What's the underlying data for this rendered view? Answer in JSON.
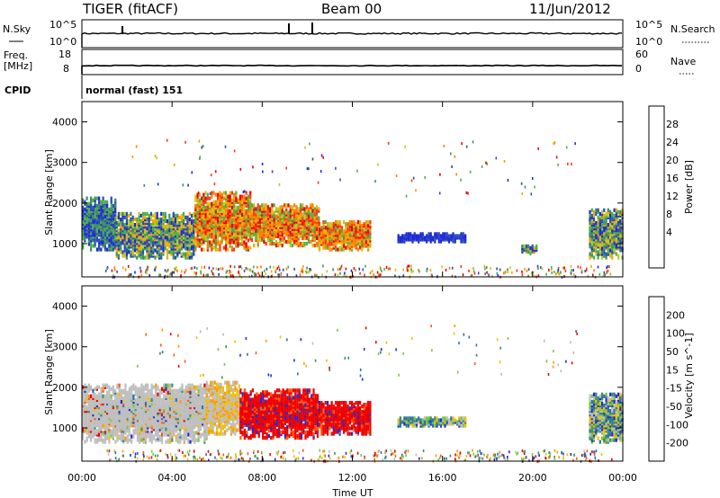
{
  "header": {
    "station": "TIGER (fitACF)",
    "beam": "Beam 00",
    "date": "11/Jun/2012"
  },
  "nsky_panel": {
    "left_label": "N.Sky",
    "right_label": "N.Search",
    "left_ticks": [
      "10^5",
      "10^0"
    ],
    "right_ticks": [
      "10^5",
      "10^0"
    ]
  },
  "freq_panel": {
    "left_label_1": "Freq.",
    "left_label_2": "[MHz]",
    "right_label": "Nave",
    "left_ticks": [
      "18",
      "8"
    ],
    "right_ticks": [
      "60",
      "0"
    ]
  },
  "cpid": {
    "label": "CPID",
    "value": "normal (fast) 151"
  },
  "chart_data": [
    {
      "type": "heatmap",
      "name": "power",
      "ylabel": "Slant Range [km]",
      "xlabel": "Time UT",
      "y_ticks": [
        "4000",
        "3000",
        "2000",
        "1000"
      ],
      "ylim": [
        180,
        4500
      ],
      "colorbar_label": "Power [dB]",
      "colorbar_ticks": [
        "28",
        "24",
        "20",
        "16",
        "12",
        "8",
        "4"
      ],
      "colorbar_colors": [
        "#1f2bd6",
        "#2d4fb8",
        "#3f8f5e",
        "#4fb04c",
        "#c8c81e",
        "#f2a400",
        "#ff7f00",
        "#ff3a12",
        "#ee0000"
      ],
      "bands": [
        {
          "t0": 0.0,
          "t1": 1.5,
          "r0": 900,
          "r1": 2200,
          "kind": "weak-mixed"
        },
        {
          "t0": 1.5,
          "t1": 5.0,
          "r0": 700,
          "r1": 1800,
          "kind": "mixed"
        },
        {
          "t0": 5.0,
          "t1": 7.5,
          "r0": 900,
          "r1": 2300,
          "kind": "strong"
        },
        {
          "t0": 7.5,
          "t1": 10.5,
          "r0": 1000,
          "r1": 2000,
          "kind": "strong"
        },
        {
          "t0": 10.5,
          "t1": 12.8,
          "r0": 900,
          "r1": 1600,
          "kind": "strong"
        },
        {
          "t0": 14.0,
          "t1": 17.0,
          "r0": 1100,
          "r1": 1300,
          "kind": "weak"
        },
        {
          "t0": 19.5,
          "t1": 20.2,
          "r0": 800,
          "r1": 1000,
          "kind": "mixed"
        },
        {
          "t0": 22.5,
          "t1": 24.0,
          "r0": 700,
          "r1": 1900,
          "kind": "mixed"
        }
      ]
    },
    {
      "type": "heatmap",
      "name": "velocity",
      "ylabel": "Slant Range [km]",
      "xlabel": "Time UT",
      "y_ticks": [
        "4000",
        "3000",
        "2000",
        "1000"
      ],
      "ylim": [
        180,
        4500
      ],
      "colorbar_label": "Velocity [m s^-1]",
      "colorbar_ticks": [
        "200",
        "100",
        "50",
        "15",
        "-15",
        "-50",
        "-100",
        "-200"
      ],
      "colorbar_colors": [
        "#1f2bd6",
        "#2e6fb0",
        "#3f8f5e",
        "#78c83c",
        "#bfbfbf",
        "#f0c000",
        "#ff9a00",
        "#ff5a0a",
        "#ee0000"
      ],
      "bands": [
        {
          "t0": 0.0,
          "t1": 5.5,
          "r0": 700,
          "r1": 2100,
          "kind": "ground"
        },
        {
          "t0": 5.5,
          "t1": 7.0,
          "r0": 900,
          "r1": 2200,
          "kind": "mixed-low"
        },
        {
          "t0": 7.0,
          "t1": 10.5,
          "r0": 800,
          "r1": 2000,
          "kind": "negative"
        },
        {
          "t0": 10.5,
          "t1": 12.8,
          "r0": 900,
          "r1": 1700,
          "kind": "negative"
        },
        {
          "t0": 14.0,
          "t1": 17.0,
          "r0": 1100,
          "r1": 1300,
          "kind": "mixed"
        },
        {
          "t0": 22.5,
          "t1": 24.0,
          "r0": 700,
          "r1": 1900,
          "kind": "mixed"
        }
      ]
    }
  ],
  "x_ticks": [
    "00:00",
    "04:00",
    "08:00",
    "12:00",
    "16:00",
    "20:00",
    "00:00"
  ],
  "x_axis_label": "Time UT"
}
